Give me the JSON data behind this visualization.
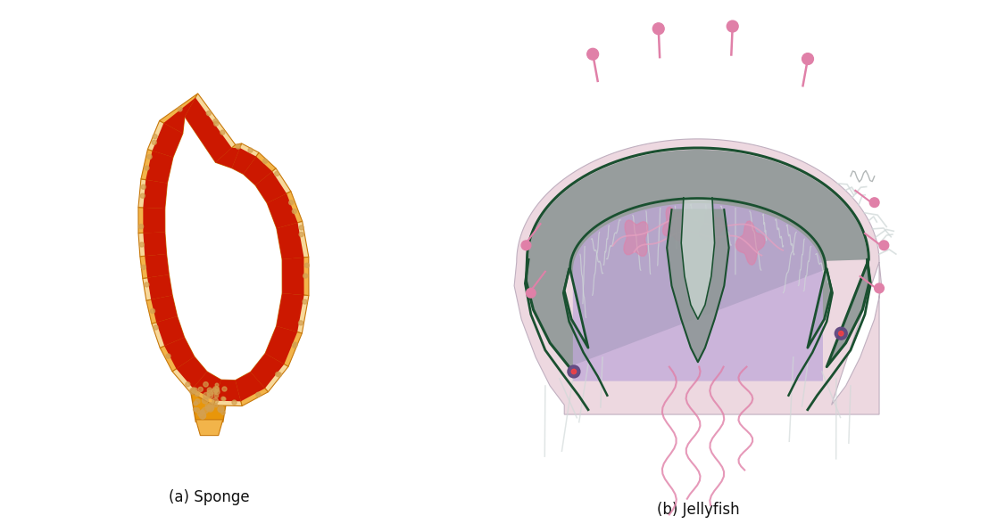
{
  "title_a": "(a) Sponge",
  "title_b": "(b) Jellyfish",
  "title_fontsize": 12,
  "bg_color": "#ffffff",
  "sponge": {
    "outer_orange": "#E8960A",
    "mid_orange": "#F2B44A",
    "pale_orange": "#F7D89A",
    "cream": "#FAE8C0",
    "red": "#CC1800",
    "dark_orange": "#C8780A",
    "dot_color": "#D4A050"
  },
  "jellyfish": {
    "outer_pink": "#EDD8E0",
    "gray_meso": "#909898",
    "dark_green": "#1A5030",
    "purple": "#C0A8D8",
    "pink_organ": "#E080A8",
    "pink_line": "#E8A0C0",
    "white_outline": "#ffffff",
    "tentacle_light": "#D0D8D8",
    "dark_purple": "#604880"
  }
}
